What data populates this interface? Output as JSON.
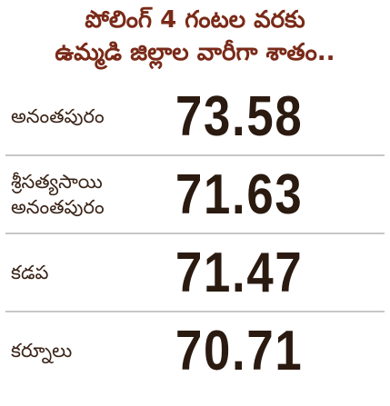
{
  "header": {
    "title": [
      "పోలింగ్ 4 గంటల వరకు",
      "ఉమ్మడి జిల్లాల వారీగా శాతం.."
    ]
  },
  "table": {
    "rows": [
      [
        [
          "అనంతపురం"
        ],
        "73.58"
      ],
      [
        [
          "శ్రీసత్యసాయి",
          "అనంతపురం"
        ],
        "71.63"
      ],
      [
        [
          "కడప"
        ],
        "71.47"
      ],
      [
        [
          "కర్నూలు"
        ],
        "70.71"
      ]
    ]
  }
}
